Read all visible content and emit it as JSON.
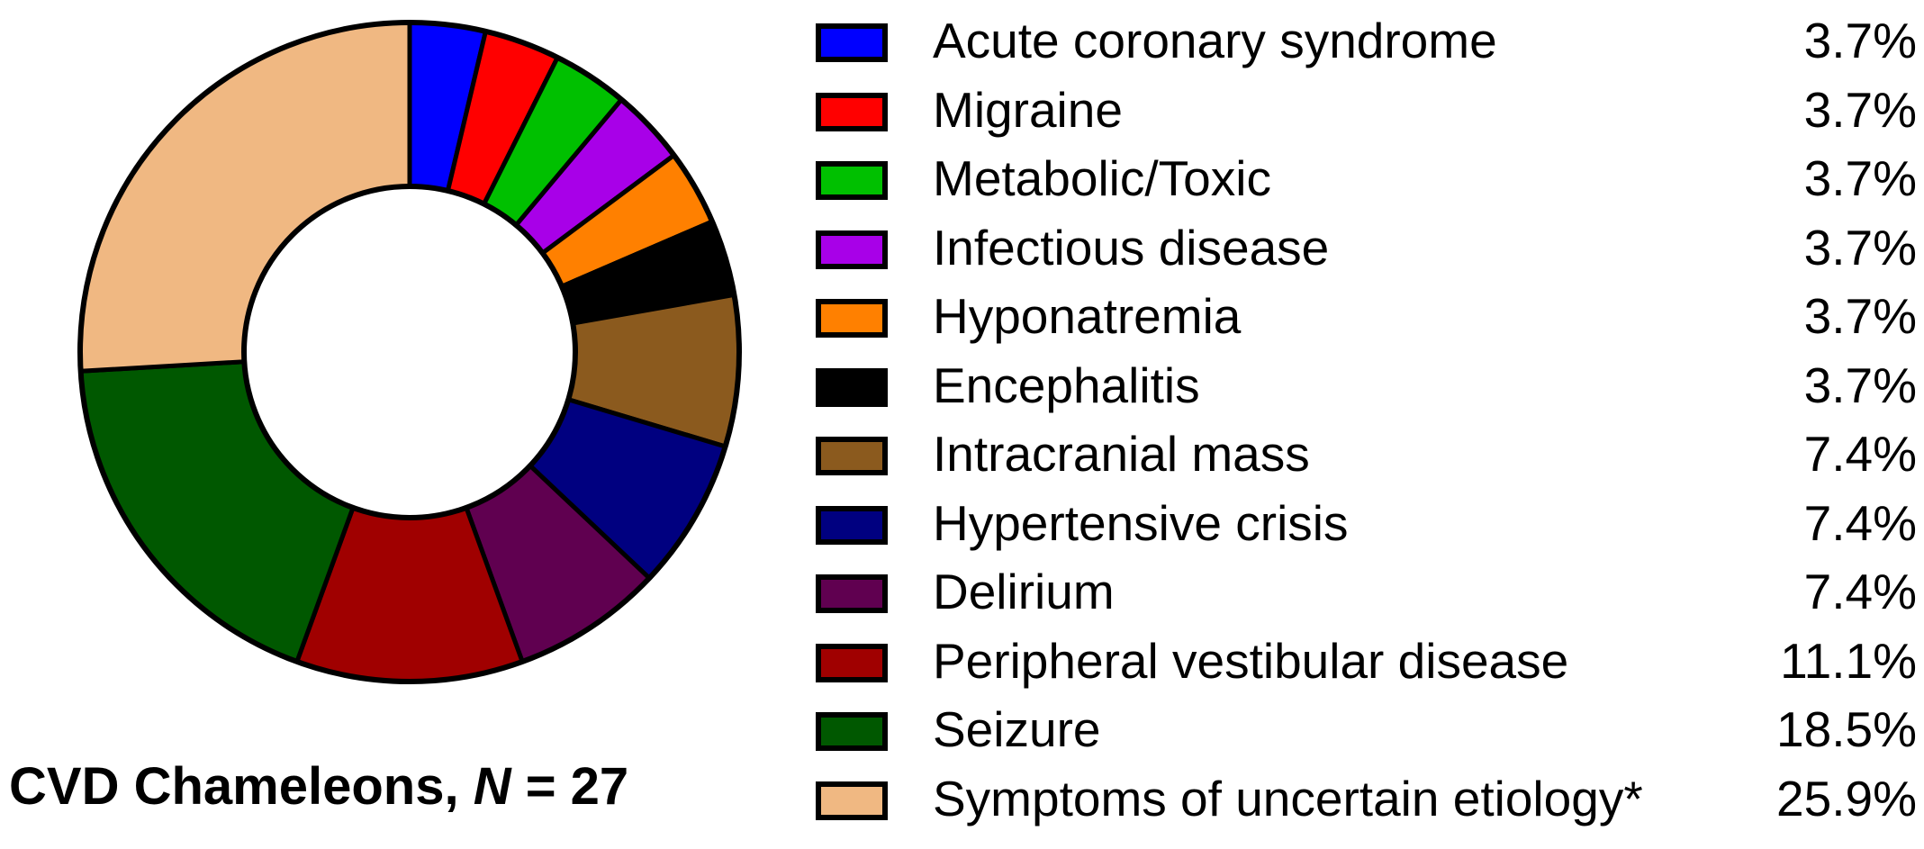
{
  "chart_data": {
    "type": "pie",
    "variant": "donut",
    "caption_prefix": "CVD Chameleons, ",
    "caption_n_symbol": "N",
    "caption_n_suffix": " = 27",
    "legend_placement": "right",
    "slices": [
      {
        "label": "Acute coronary syndrome",
        "value": 3.7,
        "value_label": "3.7%",
        "color": "#0000FF"
      },
      {
        "label": "Migraine",
        "value": 3.7,
        "value_label": "3.7%",
        "color": "#FF0000"
      },
      {
        "label": "Metabolic/Toxic",
        "value": 3.7,
        "value_label": "3.7%",
        "color": "#00C000"
      },
      {
        "label": "Infectious disease",
        "value": 3.7,
        "value_label": "3.7%",
        "color": "#A800E8"
      },
      {
        "label": "Hyponatremia",
        "value": 3.7,
        "value_label": "3.7%",
        "color": "#FF8000"
      },
      {
        "label": "Encephalitis",
        "value": 3.7,
        "value_label": "3.7%",
        "color": "#000000"
      },
      {
        "label": "Intracranial mass",
        "value": 7.4,
        "value_label": "7.4%",
        "color": "#8B5A1E"
      },
      {
        "label": "Hypertensive crisis",
        "value": 7.4,
        "value_label": "7.4%",
        "color": "#000080"
      },
      {
        "label": "Delirium",
        "value": 7.4,
        "value_label": "7.4%",
        "color": "#600050"
      },
      {
        "label": "Peripheral vestibular disease",
        "value": 11.1,
        "value_label": "11.1%",
        "color": "#A00000"
      },
      {
        "label": "Seizure",
        "value": 18.5,
        "value_label": "18.5%",
        "color": "#005800"
      },
      {
        "label": "Symptoms of uncertain etiology*",
        "value": 25.9,
        "value_label": "25.9%",
        "color": "#F0B882"
      }
    ]
  }
}
